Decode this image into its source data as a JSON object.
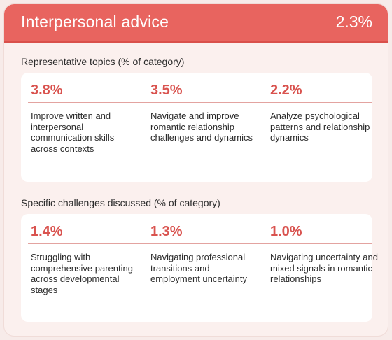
{
  "header": {
    "title": "Interpersonal advice",
    "percent": "2.3%"
  },
  "sections": [
    {
      "label": "Representative topics (% of category)",
      "items": [
        {
          "percent": "3.8%",
          "text": "Improve written and interpersonal communication skills across contexts"
        },
        {
          "percent": "3.5%",
          "text": "Navigate and improve romantic relationship challenges and dynamics"
        },
        {
          "percent": "2.2%",
          "text": "Analyze psychological patterns and relationship dynamics"
        }
      ]
    },
    {
      "label": "Specific challenges discussed (% of category)",
      "items": [
        {
          "percent": "1.4%",
          "text": "Struggling with comprehensive parenting across developmental stages"
        },
        {
          "percent": "1.3%",
          "text": "Navigating professional transitions and employment uncertainty"
        },
        {
          "percent": "1.0%",
          "text": "Navigating uncertainty and mixed signals in romantic relationships"
        }
      ]
    }
  ],
  "colors": {
    "accent": "#e8645f",
    "percent_text": "#d9534f",
    "background": "#fbf0ee"
  }
}
